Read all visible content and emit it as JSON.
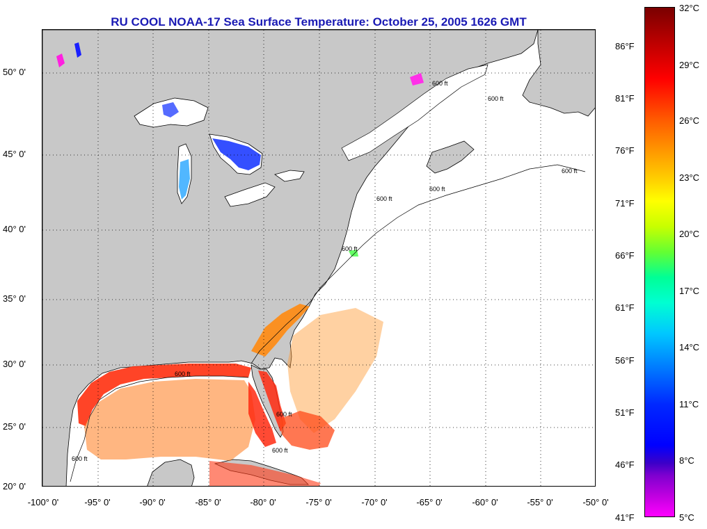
{
  "title": "RU COOL  NOAA-17  Sea Surface Temperature:  October 25, 2005 1626 GMT",
  "map": {
    "land_color": "#c8c8c8",
    "water_color": "#ffffff",
    "grid": true,
    "grid_style": "dotted",
    "lon_range": [
      -100,
      -50
    ],
    "lat_range": [
      20,
      52.5
    ],
    "isobath_labels": [
      "600 ft",
      "600 ft",
      "600 ft",
      "600 ft",
      "600 ft",
      "600 ft",
      "600 ft",
      "600 ft",
      "600 ft",
      "600 ft"
    ]
  },
  "y_axis": {
    "ticks": [
      "50° 0'",
      "45° 0'",
      "40° 0'",
      "35° 0'",
      "30° 0'",
      "25° 0'",
      "20° 0'"
    ]
  },
  "x_axis": {
    "ticks": [
      "-100° 0'",
      "-95° 0'",
      "-90° 0'",
      "-85° 0'",
      "-80° 0'",
      "-75° 0'",
      "-70° 0'",
      "-65° 0'",
      "-60° 0'",
      "-55° 0'",
      "-50° 0'"
    ]
  },
  "colorbar": {
    "celsius": [
      "32°C",
      "29°C",
      "26°C",
      "23°C",
      "20°C",
      "17°C",
      "14°C",
      "11°C",
      "8°C",
      "5°C"
    ],
    "fahrenheit": [
      "86°F",
      "81°F",
      "76°F",
      "71°F",
      "66°F",
      "61°F",
      "56°F",
      "51°F",
      "46°F",
      "41°F"
    ],
    "range_c": [
      5,
      32
    ]
  }
}
